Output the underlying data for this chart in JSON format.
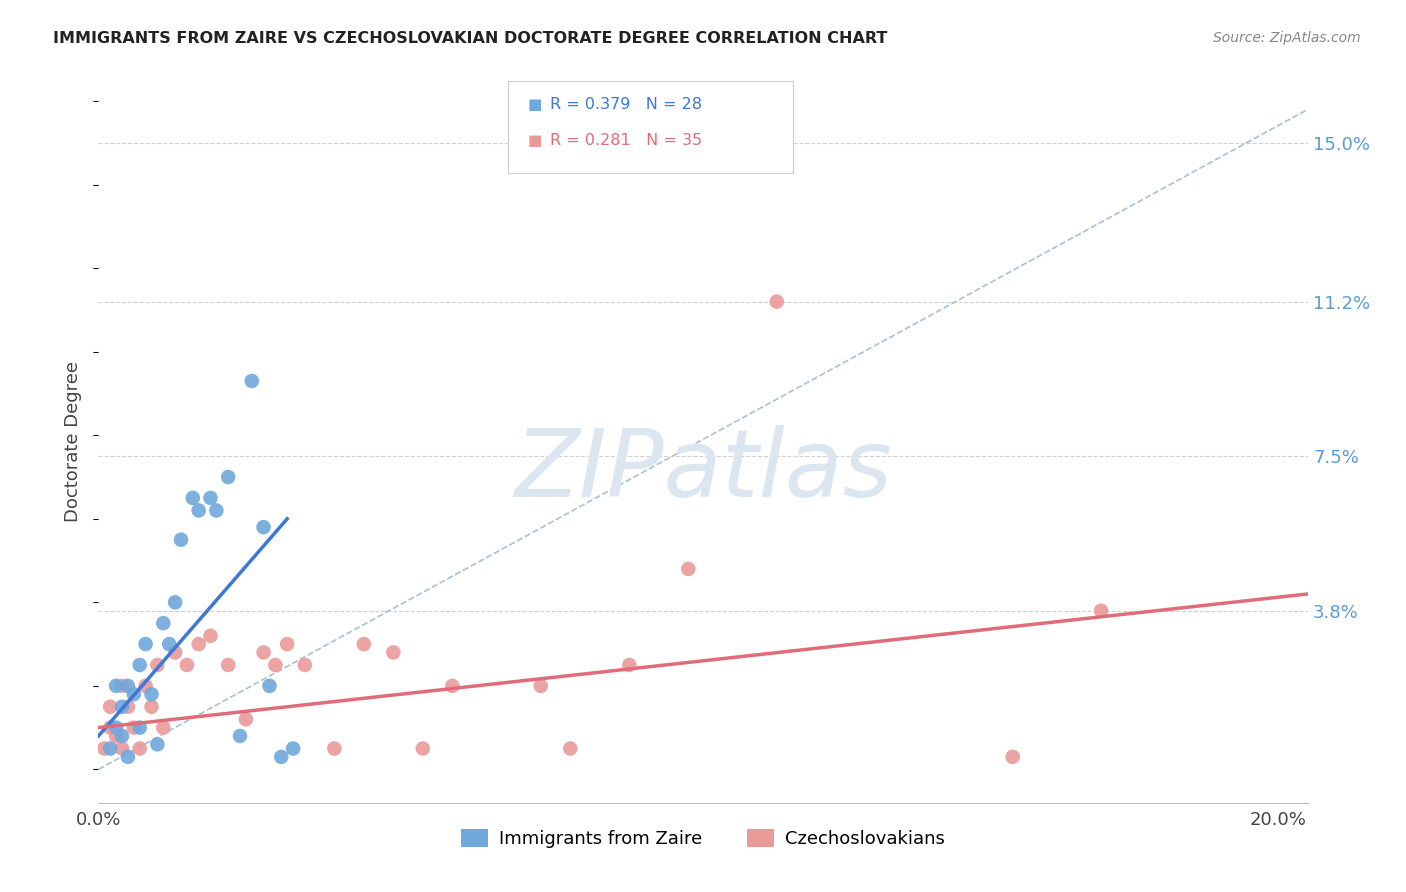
{
  "title": "IMMIGRANTS FROM ZAIRE VS CZECHOSLOVAKIAN DOCTORATE DEGREE CORRELATION CHART",
  "source": "Source: ZipAtlas.com",
  "ylabel": "Doctorate Degree",
  "ytick_labels": [
    "15.0%",
    "11.2%",
    "7.5%",
    "3.8%"
  ],
  "ytick_vals": [
    0.15,
    0.112,
    0.075,
    0.038
  ],
  "xlim": [
    0.0,
    0.205
  ],
  "ylim": [
    -0.008,
    0.165
  ],
  "legend_r1": "R = 0.379",
  "legend_n1": "N = 28",
  "legend_r2": "R = 0.281",
  "legend_n2": "N = 35",
  "legend_label1": "Immigrants from Zaire",
  "legend_label2": "Czechoslovakians",
  "blue_color": "#6fa8dc",
  "pink_color": "#ea9999",
  "blue_line_color": "#3c78d8",
  "pink_line_color": "#e06c7a",
  "dashed_line_color": "#a0b8d0",
  "grid_color": "#d0d0d0",
  "watermark_text": "ZIPatlas",
  "watermark_color": "#dce6f0",
  "blue_line_x": [
    0.0,
    0.032
  ],
  "blue_line_y": [
    0.008,
    0.06
  ],
  "pink_line_x": [
    0.0,
    0.205
  ],
  "pink_line_y": [
    0.01,
    0.042
  ],
  "dash_line_x": [
    0.0,
    0.205
  ],
  "dash_line_y": [
    0.0,
    0.158
  ],
  "blue_x": [
    0.002,
    0.003,
    0.003,
    0.004,
    0.004,
    0.005,
    0.005,
    0.006,
    0.007,
    0.007,
    0.008,
    0.009,
    0.01,
    0.011,
    0.012,
    0.013,
    0.014,
    0.016,
    0.017,
    0.019,
    0.02,
    0.022,
    0.024,
    0.026,
    0.028,
    0.029,
    0.031,
    0.033
  ],
  "blue_y": [
    0.005,
    0.01,
    0.02,
    0.008,
    0.015,
    0.02,
    0.003,
    0.018,
    0.025,
    0.01,
    0.03,
    0.018,
    0.006,
    0.035,
    0.03,
    0.04,
    0.055,
    0.065,
    0.062,
    0.065,
    0.062,
    0.07,
    0.008,
    0.093,
    0.058,
    0.02,
    0.003,
    0.005
  ],
  "pink_x": [
    0.001,
    0.002,
    0.002,
    0.003,
    0.004,
    0.004,
    0.005,
    0.006,
    0.007,
    0.008,
    0.009,
    0.01,
    0.011,
    0.013,
    0.015,
    0.017,
    0.019,
    0.022,
    0.025,
    0.028,
    0.03,
    0.032,
    0.035,
    0.04,
    0.045,
    0.05,
    0.055,
    0.06,
    0.075,
    0.08,
    0.09,
    0.1,
    0.115,
    0.155,
    0.17
  ],
  "pink_y": [
    0.005,
    0.01,
    0.015,
    0.008,
    0.02,
    0.005,
    0.015,
    0.01,
    0.005,
    0.02,
    0.015,
    0.025,
    0.01,
    0.028,
    0.025,
    0.03,
    0.032,
    0.025,
    0.012,
    0.028,
    0.025,
    0.03,
    0.025,
    0.005,
    0.03,
    0.028,
    0.005,
    0.02,
    0.02,
    0.005,
    0.025,
    0.048,
    0.112,
    0.003,
    0.038
  ]
}
